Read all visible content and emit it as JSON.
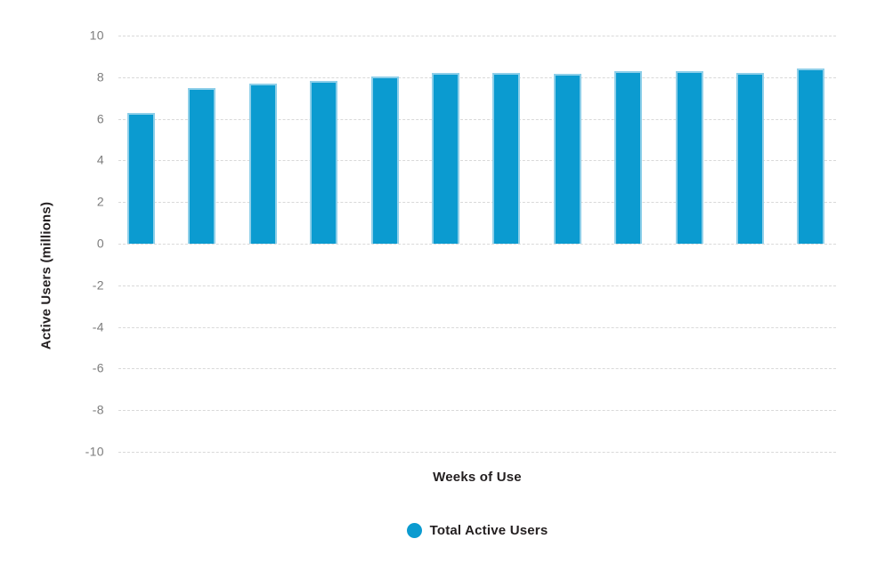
{
  "chart_data": {
    "type": "bar",
    "title": "",
    "xlabel": "Weeks of Use",
    "ylabel": "Active Users (millions)",
    "x_tick_labels": [],
    "y_ticks": [
      10,
      8,
      6,
      4,
      2,
      0,
      -2,
      -4,
      -6,
      -8,
      -10
    ],
    "ylim": [
      -10,
      10
    ],
    "grid": "horizontal-dashed",
    "legend_position": "bottom-center",
    "legend": [
      {
        "label": "Total Active Users",
        "color": "#0b9bd0"
      }
    ],
    "series": [
      {
        "name": "Total Active Users",
        "values": [
          6.3,
          7.5,
          7.7,
          7.8,
          8.05,
          8.2,
          8.2,
          8.15,
          8.3,
          8.3,
          8.2,
          8.4
        ]
      }
    ]
  },
  "colors": {
    "background": "#ffffff",
    "bar_fill": "#0b9bd0",
    "bar_border": "#8ecfe9",
    "gridline": "#d9d9d9",
    "tick_text": "#7d7d7d",
    "title_text": "#231f20"
  }
}
